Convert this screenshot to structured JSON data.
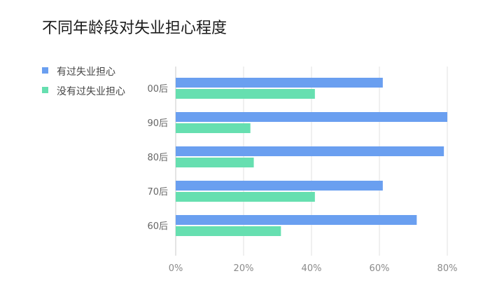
{
  "chart_data": {
    "type": "bar",
    "orientation": "horizontal",
    "title": "不同年龄段对失业担心程度",
    "categories": [
      "00后",
      "90后",
      "80后",
      "70后",
      "60后"
    ],
    "series": [
      {
        "name": "有过失业担心",
        "color": "#6a9ff0",
        "values": [
          61,
          80,
          79,
          61,
          71
        ]
      },
      {
        "name": "没有过失业担心",
        "color": "#66dfb0",
        "values": [
          41,
          22,
          23,
          41,
          31
        ]
      }
    ],
    "x_ticks": [
      "0%",
      "20%",
      "40%",
      "60%",
      "80%"
    ],
    "xlim": [
      0,
      80
    ],
    "grid": true,
    "legend_position": "top-left"
  }
}
